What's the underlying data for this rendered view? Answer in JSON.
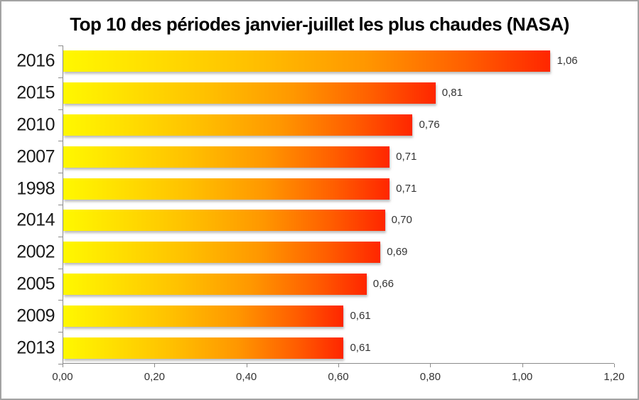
{
  "chart_data": {
    "type": "bar",
    "orientation": "horizontal",
    "title": "Top 10 des périodes janvier-juillet les plus chaudes (NASA)",
    "categories": [
      "2016",
      "2015",
      "2010",
      "2007",
      "1998",
      "2014",
      "2002",
      "2005",
      "2009",
      "2013"
    ],
    "values": [
      1.06,
      0.81,
      0.76,
      0.71,
      0.71,
      0.7,
      0.69,
      0.66,
      0.61,
      0.61
    ],
    "value_labels": [
      "1,06",
      "0,81",
      "0,76",
      "0,71",
      "0,71",
      "0,70",
      "0,69",
      "0,66",
      "0,61",
      "0,61"
    ],
    "xlabel": "",
    "ylabel": "",
    "xlim": [
      0,
      1.2
    ],
    "x_ticks": [
      0,
      0.2,
      0.4,
      0.6,
      0.8,
      1.0,
      1.2
    ],
    "x_tick_labels": [
      "0,00",
      "0,20",
      "0,40",
      "0,60",
      "0,80",
      "1,00",
      "1,20"
    ],
    "grid": false,
    "legend": false,
    "bar_gradient": [
      "#fff800 0%",
      "#ffe400 14%",
      "#ffc100 38%",
      "#ff9700 62%",
      "#ff5e00 83%",
      "#ff2600 100%"
    ],
    "colors": {
      "axis": "#8c8c8c",
      "label": "#333333",
      "category_label": "#1a1a1a",
      "title": "#000000",
      "border": "#a3a3a3",
      "background": "#ffffff"
    }
  }
}
